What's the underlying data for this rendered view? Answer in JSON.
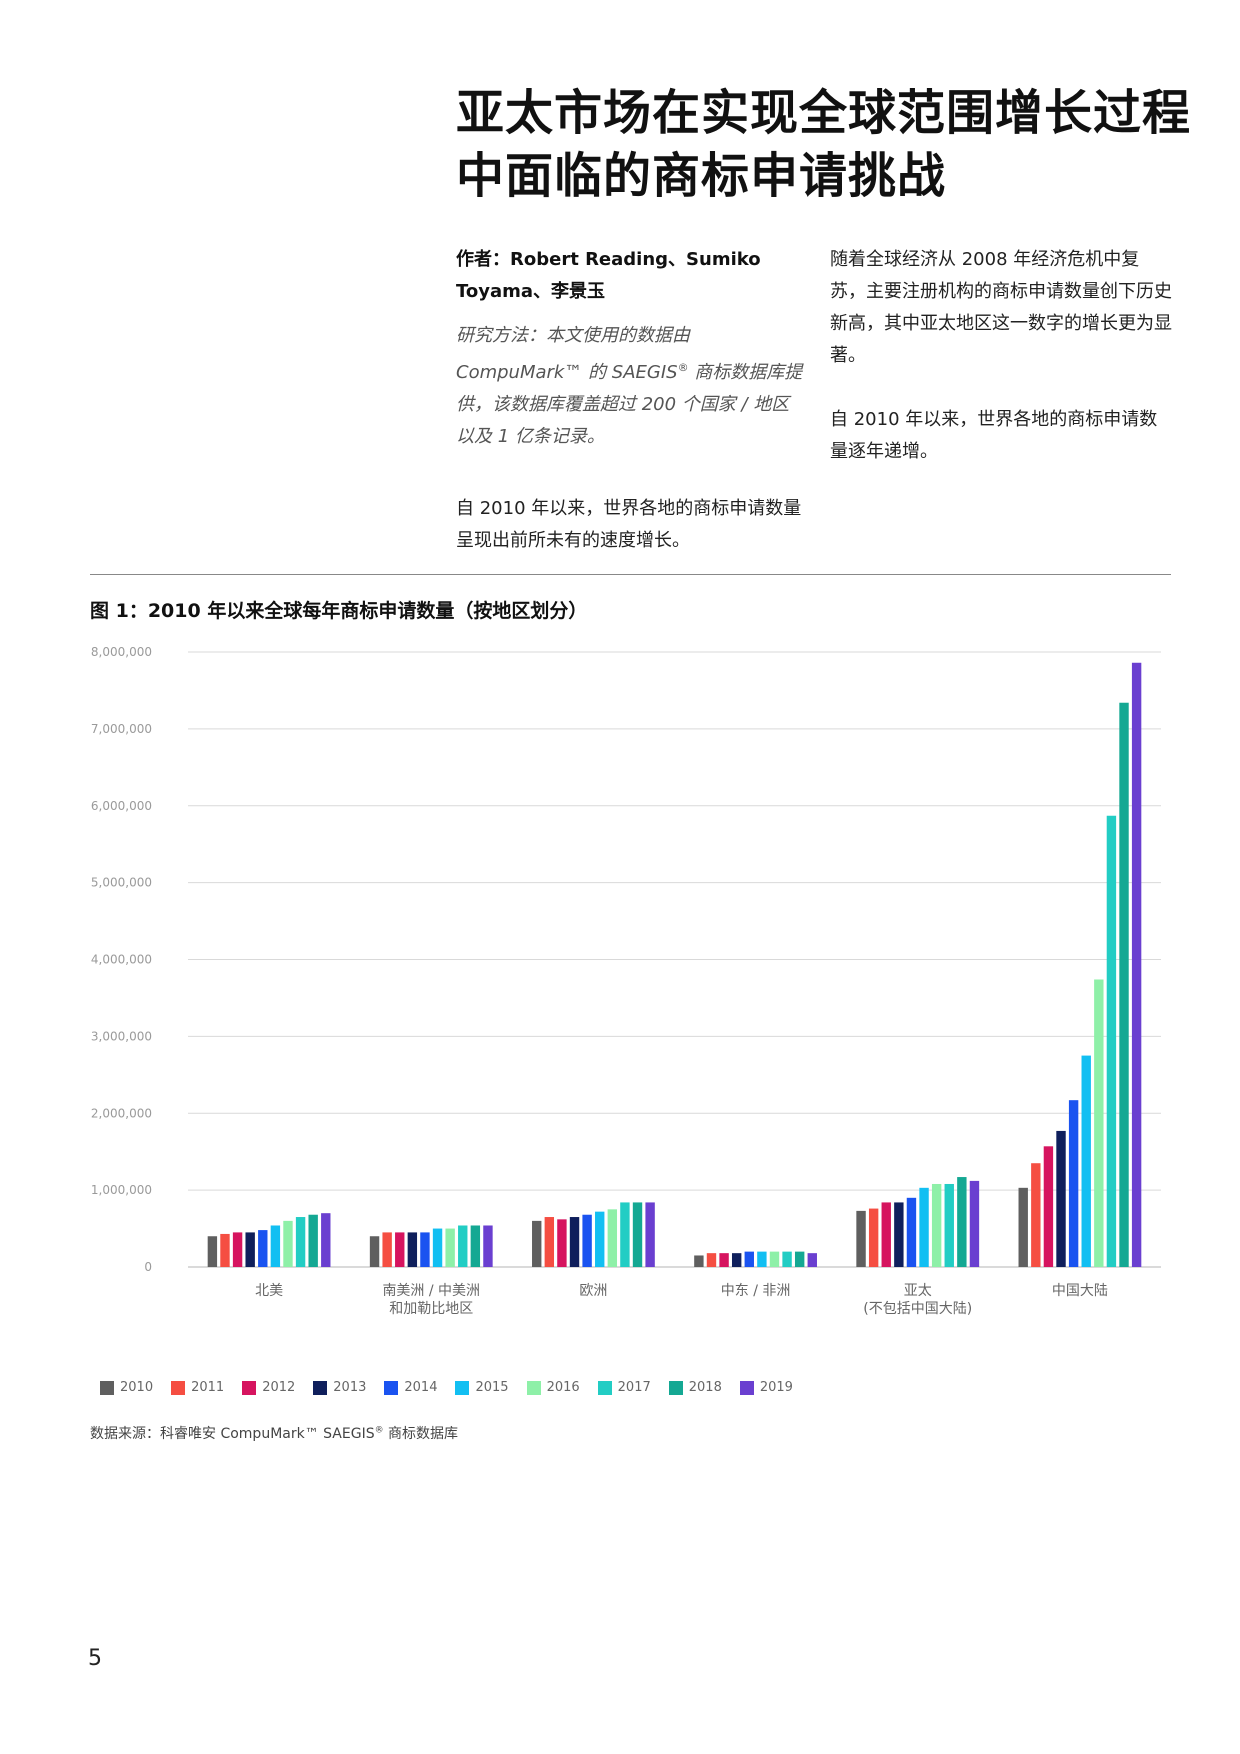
{
  "page": {
    "title": "亚太市场在实现全球范围增长过程中面临的商标申请挑战",
    "authors": "作者：Robert Reading、Sumiko Toyama、李景玉",
    "method_text": "研究方法：本文使用的数据由 CompuMark™ 的 SAEGIS",
    "method_mark": "®",
    "method_text_end": " 商标数据库提供，该数据库覆盖超过 200 个国家 / 地区以及 1 亿条记录。",
    "left_paragraph": "自 2010 年以来，世界各地的商标申请数量呈现出前所未有的速度增长。",
    "right_paragraph_1": "随着全球经济从 2008 年经济危机中复苏，主要注册机构的商标申请数量创下历史新高，其中亚太地区这一数字的增长更为显著。",
    "right_paragraph_2": "自 2010 年以来，世界各地的商标申请数量逐年递增。",
    "figure_title": "图 1：2010 年以来全球每年商标申请数量（按地区划分）",
    "source_text": "数据来源：科睿唯安 CompuMark™ SAEGIS",
    "source_mark": "®",
    "source_text_end": " 商标数据库",
    "page_number": "5"
  },
  "chart_data": {
    "type": "bar",
    "title": "",
    "xlabel": "",
    "ylabel": "",
    "ylim": [
      0,
      8000000
    ],
    "y_ticks": [
      0,
      1000000,
      2000000,
      3000000,
      4000000,
      5000000,
      6000000,
      7000000,
      8000000
    ],
    "y_tick_labels": [
      "0",
      "1,000,000",
      "2,000,000",
      "3,000,000",
      "4,000,000",
      "5,000,000",
      "6,000,000",
      "7,000,000",
      "8,000,000"
    ],
    "grid": true,
    "legend_position": "bottom-left",
    "categories": [
      [
        "北美"
      ],
      [
        "南美洲 / 中美洲",
        "和加勒比地区"
      ],
      [
        "欧洲"
      ],
      [
        "中东 / 非洲"
      ],
      [
        "亚太",
        "(不包括中国大陆)"
      ],
      [
        "中国大陆"
      ]
    ],
    "series": [
      {
        "name": "2010",
        "color": "#5f5f5f",
        "values": [
          400000,
          400000,
          600000,
          150000,
          730000,
          1030000
        ]
      },
      {
        "name": "2011",
        "color": "#f54e42",
        "values": [
          430000,
          450000,
          650000,
          180000,
          760000,
          1350000
        ]
      },
      {
        "name": "2012",
        "color": "#d6145f",
        "values": [
          450000,
          450000,
          620000,
          180000,
          840000,
          1570000
        ]
      },
      {
        "name": "2013",
        "color": "#0f1f5c",
        "values": [
          450000,
          450000,
          650000,
          180000,
          840000,
          1770000
        ]
      },
      {
        "name": "2014",
        "color": "#1a53f0",
        "values": [
          480000,
          450000,
          680000,
          200000,
          900000,
          2170000
        ]
      },
      {
        "name": "2015",
        "color": "#12bff2",
        "values": [
          540000,
          500000,
          720000,
          200000,
          1030000,
          2750000
        ]
      },
      {
        "name": "2016",
        "color": "#8ef0a8",
        "values": [
          600000,
          500000,
          750000,
          200000,
          1080000,
          3740000
        ]
      },
      {
        "name": "2017",
        "color": "#22cdc4",
        "values": [
          650000,
          540000,
          840000,
          200000,
          1080000,
          5870000
        ]
      },
      {
        "name": "2018",
        "color": "#14a893",
        "values": [
          680000,
          540000,
          840000,
          200000,
          1170000,
          7340000
        ]
      },
      {
        "name": "2019",
        "color": "#6a3fd0",
        "values": [
          700000,
          540000,
          840000,
          180000,
          1120000,
          7860000
        ]
      }
    ]
  }
}
